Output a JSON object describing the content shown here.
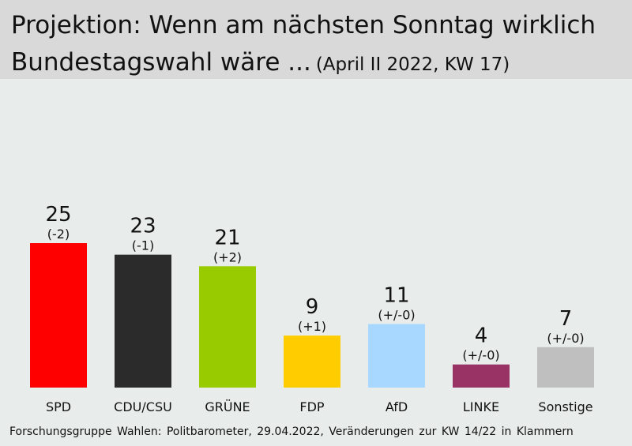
{
  "header": {
    "title_line1": "Projektion: Wenn am nächsten Sonntag wirklich",
    "title_line2": "Bundestagswahl wäre ...",
    "subtitle": "(April II 2022, KW 17)"
  },
  "source": "Forschungsgruppe Wahlen: Politbarometer, 29.04.2022, Veränderungen zur KW 14/22 in Klammern",
  "chart_data": {
    "type": "bar",
    "title": "Projektion: Wenn am nächsten Sonntag wirklich Bundestagswahl wäre ...",
    "subtitle": "(April II 2022, KW 17)",
    "categories": [
      "SPD",
      "CDU/CSU",
      "GRÜNE",
      "FDP",
      "AfD",
      "LINKE",
      "Sonstige"
    ],
    "values": [
      25,
      23,
      21,
      9,
      11,
      4,
      7
    ],
    "changes": [
      "(-2)",
      "(-1)",
      "(+2)",
      "(+1)",
      "(+/-0)",
      "(+/-0)",
      "(+/-0)"
    ],
    "colors": [
      "#ff0000",
      "#2b2b2b",
      "#99cc00",
      "#ffcc00",
      "#a8d8ff",
      "#993366",
      "#bfbfbf"
    ],
    "xlabel": "",
    "ylabel": "",
    "grid": false,
    "legend": "none"
  }
}
